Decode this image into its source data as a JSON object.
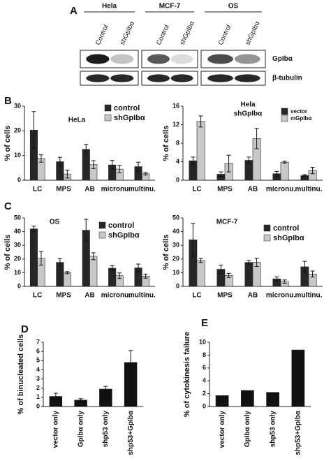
{
  "blot": {
    "panel": "A",
    "groups": [
      {
        "name": "Hela",
        "lanes": [
          "Control",
          "shGpIbα"
        ]
      },
      {
        "name": "MCF-7",
        "lanes": [
          "Control",
          "shGpIbα"
        ]
      },
      {
        "name": "OS",
        "lanes": [
          "Control",
          "shGpIbα"
        ]
      }
    ],
    "rows": [
      "GpIbα",
      "β-tubulin"
    ]
  },
  "chart_data": [
    {
      "type": "bar",
      "panel": "B",
      "title": "HeLa",
      "ylabel": "% of cells",
      "categories": [
        "LC",
        "MPS",
        "AB",
        "micronu.",
        "multinu."
      ],
      "series": [
        {
          "name": "control",
          "color": "#262626",
          "values": [
            20.3,
            7.5,
            12.5,
            6.2,
            5.5
          ],
          "errors": [
            7.5,
            1.8,
            2,
            1.8,
            1.8
          ]
        },
        {
          "name": "shGpIbα",
          "color": "#c8c8c8",
          "values": [
            8.8,
            2.5,
            6.3,
            4.5,
            2.6
          ],
          "errors": [
            1.5,
            1.6,
            1.6,
            1.5,
            0.5
          ]
        }
      ],
      "ylim": [
        0,
        30
      ],
      "yticks": [
        0,
        10,
        20,
        30
      ]
    },
    {
      "type": "bar",
      "title": "Hela",
      "subtitle": "shGpIbα",
      "ylabel": "% of cells",
      "categories": [
        "LC",
        "MPS",
        "AB",
        "micronu.",
        "multinu."
      ],
      "series": [
        {
          "name": "vector",
          "color": "#262626",
          "values": [
            4.2,
            1.3,
            4.3,
            1.4,
            1.0
          ],
          "errors": [
            0.8,
            0.5,
            0.7,
            0.5,
            0.2
          ]
        },
        {
          "name": "mGpIbα",
          "color": "#c8c8c8",
          "values": [
            12.7,
            3.6,
            9.0,
            3.9,
            2.1
          ],
          "errors": [
            1.2,
            1.8,
            2.2,
            0.2,
            0.7
          ]
        }
      ],
      "ylim": [
        0,
        16
      ],
      "yticks": [
        0,
        4,
        8,
        12,
        16
      ]
    },
    {
      "type": "bar",
      "panel": "C",
      "title": "OS",
      "ylabel": "% of cells",
      "categories": [
        "LC",
        "MPS",
        "AB",
        "micronu.",
        "multinu."
      ],
      "series": [
        {
          "name": "control",
          "color": "#262626",
          "values": [
            42,
            17.5,
            41,
            13.3,
            13.5
          ],
          "errors": [
            2,
            2.8,
            8,
            1.8,
            2.8
          ]
        },
        {
          "name": "shGpIbα",
          "color": "#c8c8c8",
          "values": [
            20.5,
            10,
            22,
            7.8,
            7.5
          ],
          "errors": [
            5,
            0.8,
            2.5,
            2,
            1.5
          ]
        }
      ],
      "ylim": [
        0,
        50
      ],
      "yticks": [
        0,
        10,
        20,
        30,
        40,
        50
      ]
    },
    {
      "type": "bar",
      "title": "MCF-7",
      "ylabel": "% of cells",
      "categories": [
        "LC",
        "MPS",
        "AB",
        "micronu.",
        "multinu."
      ],
      "series": [
        {
          "name": "control",
          "color": "#262626",
          "values": [
            34,
            12.5,
            17.5,
            5.5,
            14.3
          ],
          "errors": [
            12,
            3,
            1.5,
            1.5,
            4
          ]
        },
        {
          "name": "shGpIbα",
          "color": "#c8c8c8",
          "values": [
            19,
            8,
            17.5,
            3.5,
            9
          ],
          "errors": [
            1.5,
            1.5,
            3,
            1.2,
            2.2
          ]
        }
      ],
      "ylim": [
        0,
        50
      ],
      "yticks": [
        0,
        10,
        20,
        30,
        40,
        50
      ]
    },
    {
      "type": "bar",
      "panel": "D",
      "ylabel": "% of binucleated cells",
      "categories": [
        "vector only",
        "GpIbα only",
        "shp53 only",
        "shp53+GpIbα"
      ],
      "series": [
        {
          "color": "#111111",
          "values": [
            1.1,
            0.7,
            1.9,
            4.8
          ],
          "errors": [
            0.35,
            0.15,
            0.3,
            1.3
          ]
        }
      ],
      "ylim": [
        0,
        7
      ],
      "yticks": [
        0,
        1,
        2,
        3,
        4,
        5,
        6,
        7
      ]
    },
    {
      "type": "bar",
      "panel": "E",
      "ylabel": "% of cytokinesis failure",
      "categories": [
        "vector only",
        "GpIbα only",
        "shp53 only",
        "shp53+GpIbα"
      ],
      "series": [
        {
          "color": "#111111",
          "values": [
            1.7,
            2.5,
            2.2,
            8.8
          ]
        }
      ],
      "ylim": [
        0,
        10
      ],
      "yticks": [
        0,
        2,
        4,
        6,
        8,
        10
      ]
    }
  ]
}
